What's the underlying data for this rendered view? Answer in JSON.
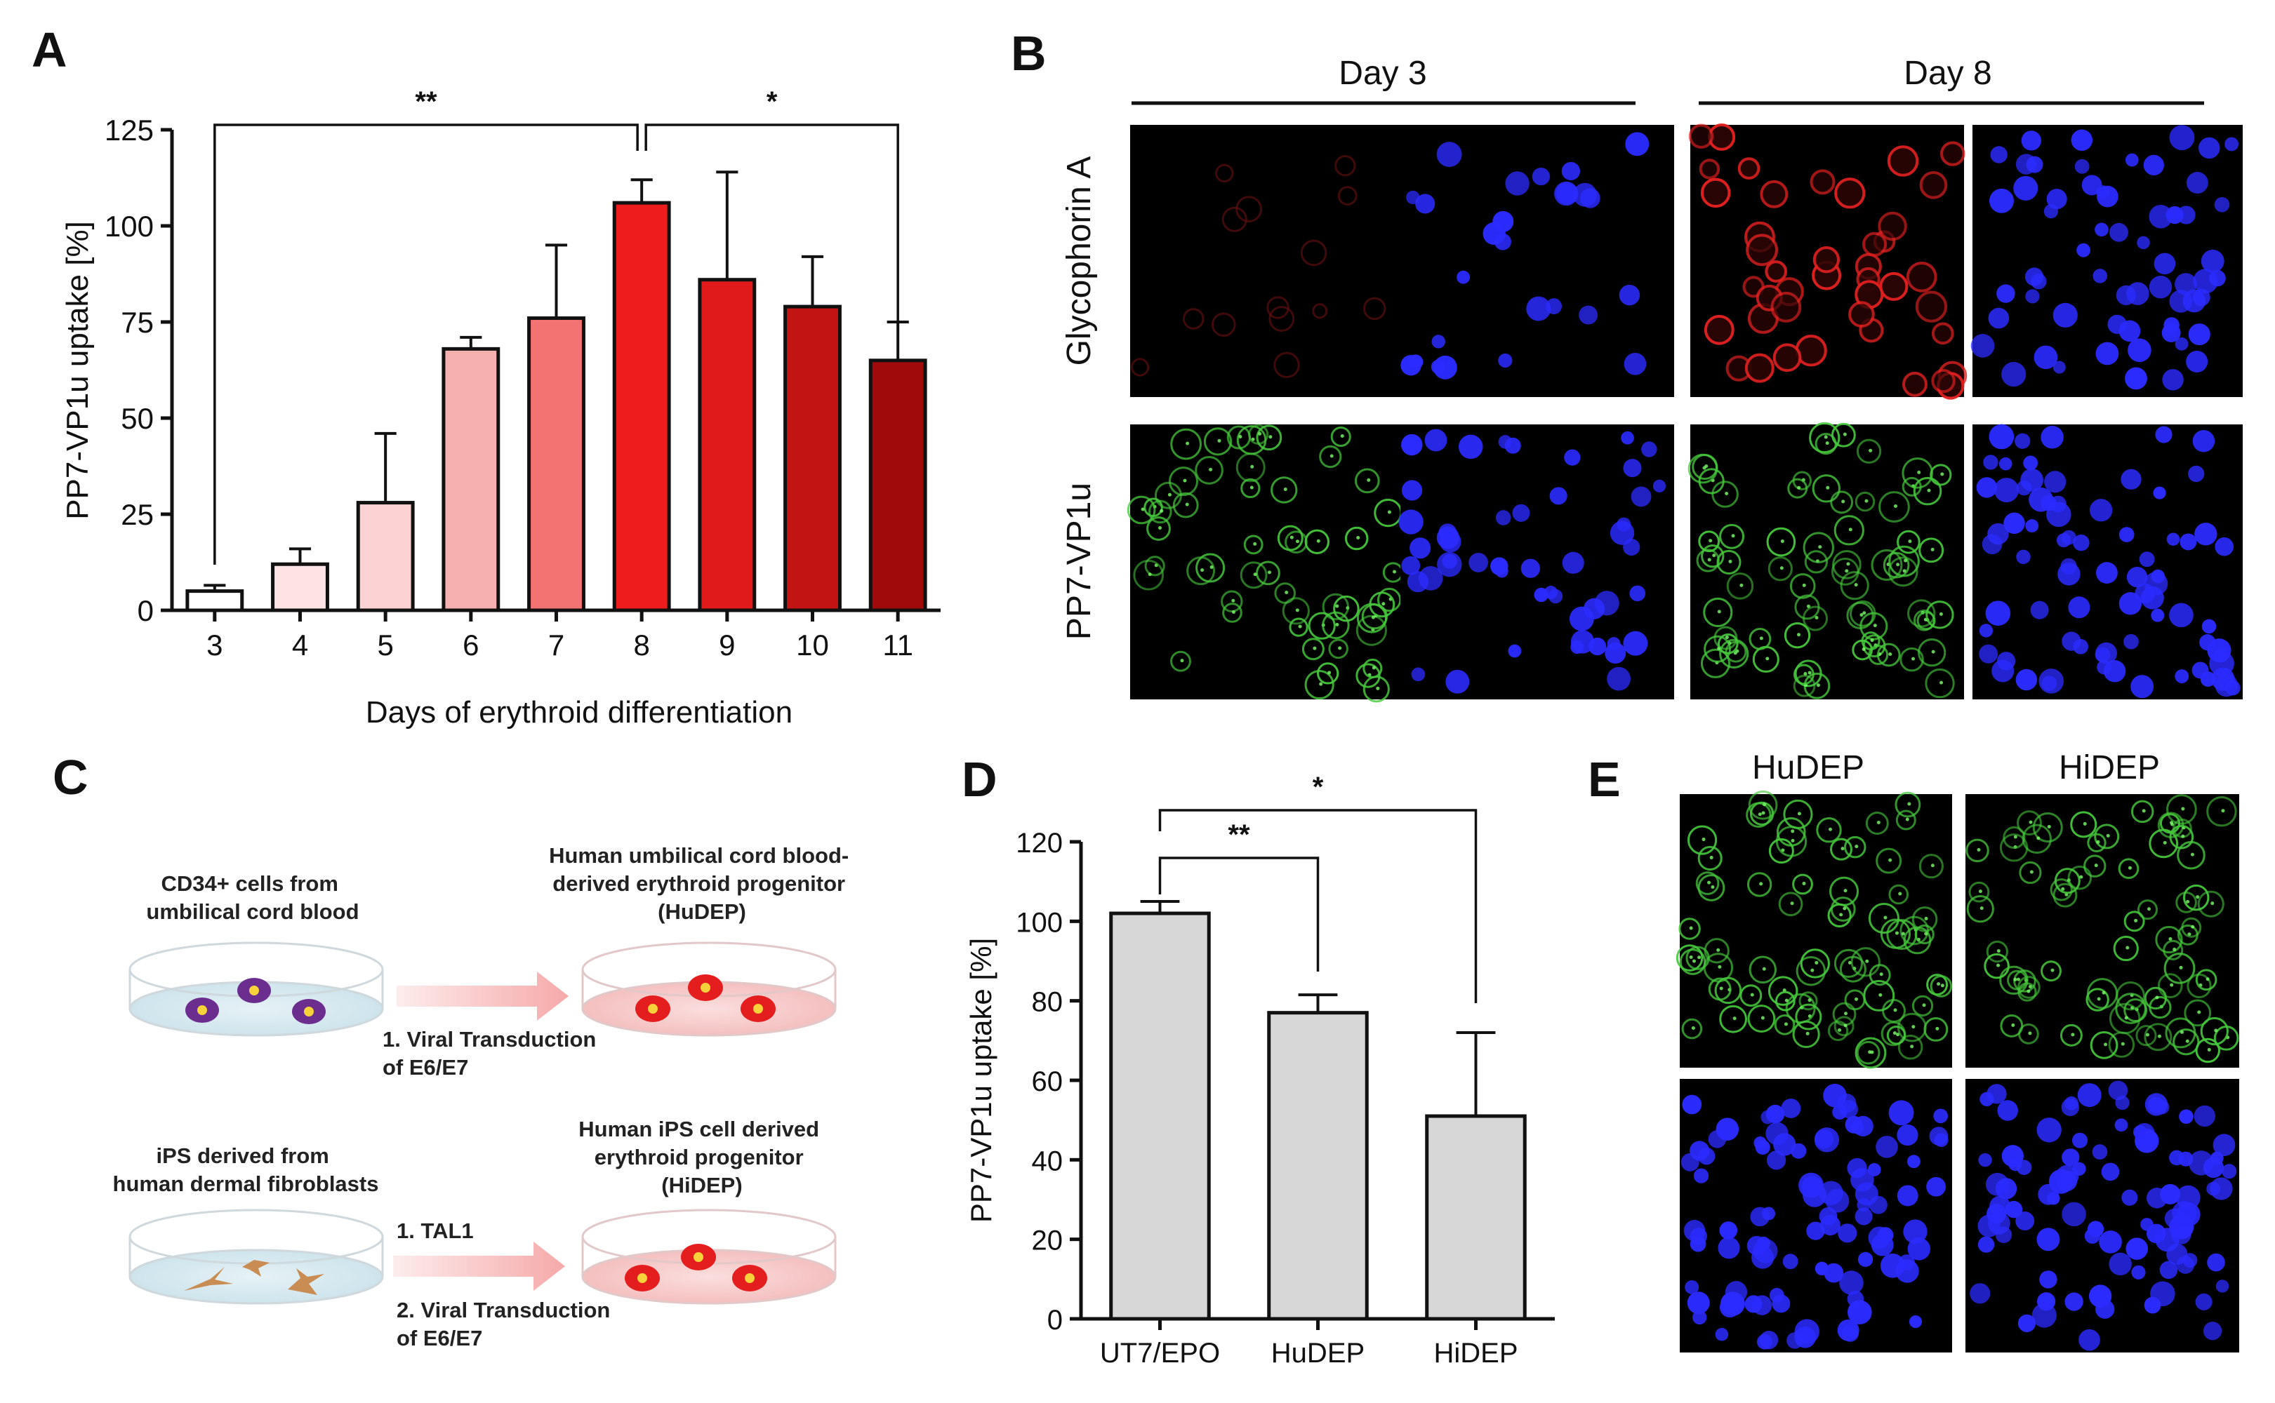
{
  "panel_labels": {
    "a": "A",
    "b": "B",
    "c": "C",
    "d": "D",
    "e": "E"
  },
  "colors": {
    "red_channel": "#d42020",
    "green_channel": "#4cd648",
    "blue_channel": "#2b2bff",
    "gray_bar": "#d7d7d7",
    "dish_blue": "#d7eaf1",
    "dish_red": "#f7cccc",
    "arrow_pink": "#f6b7b7",
    "cell_purple": "#6b2e8f",
    "cell_red": "#e41e1e",
    "nucleus_yellow": "#f7d23a",
    "fibroblast_tan": "#c98c52"
  },
  "chart_data": [
    {
      "id": "A",
      "type": "bar",
      "title": "",
      "xlabel": "Days of erythroid differentiation",
      "ylabel": "PP7-VP1u uptake [%]",
      "categories": [
        "3",
        "4",
        "5",
        "6",
        "7",
        "8",
        "9",
        "10",
        "11"
      ],
      "values": [
        5,
        12,
        28,
        68,
        76,
        106,
        86,
        79,
        65
      ],
      "error_plus": [
        1.5,
        4,
        18,
        3,
        19,
        6,
        28,
        13,
        10
      ],
      "bar_colors": [
        "#ffffff",
        "#fde3e3",
        "#fbd1d1",
        "#f7b0b0",
        "#f37272",
        "#ee1c1c",
        "#e01a1a",
        "#c31414",
        "#a10a0a"
      ],
      "ylim": [
        0,
        125
      ],
      "yticks": [
        0,
        25,
        50,
        75,
        100,
        125
      ],
      "significance": [
        {
          "from": "3",
          "to": "8",
          "label": "**"
        },
        {
          "from": "8",
          "to": "11",
          "label": "*"
        }
      ]
    },
    {
      "id": "D",
      "type": "bar",
      "title": "",
      "xlabel": "",
      "ylabel": "PP7-VP1u uptake [%]",
      "categories": [
        "UT7/EPO",
        "HuDEP",
        "HiDEP"
      ],
      "values": [
        102,
        77,
        51
      ],
      "error_plus": [
        3,
        4.5,
        21
      ],
      "ylim": [
        0,
        120
      ],
      "yticks": [
        0,
        20,
        40,
        60,
        80,
        100,
        120
      ],
      "significance": [
        {
          "from": "UT7/EPO",
          "to": "HuDEP",
          "label": "**"
        },
        {
          "from": "UT7/EPO",
          "to": "HiDEP",
          "label": "*"
        }
      ]
    }
  ],
  "panel_b": {
    "columns": [
      "Day 3",
      "Day 8"
    ],
    "rows": [
      "Glycophorin A",
      "PP7-VP1u"
    ]
  },
  "panel_c": {
    "top": {
      "source_caption": [
        "CD34+ cells from",
        "umbilical cord blood"
      ],
      "target_caption": [
        "Human umbilical cord blood-",
        "derived erythroid progenitor",
        "(HuDEP)"
      ],
      "steps": [
        "1. Viral Transduction",
        "of E6/E7"
      ]
    },
    "bottom": {
      "source_caption": [
        "iPS derived from",
        "human dermal fibroblasts"
      ],
      "target_caption": [
        "Human iPS cell derived",
        "erythroid progenitor",
        "(HiDEP)"
      ],
      "steps_top": [
        "1. TAL1"
      ],
      "steps_bottom": [
        "2. Viral Transduction",
        "of E6/E7"
      ]
    }
  },
  "panel_e": {
    "columns": [
      "HuDEP",
      "HiDEP"
    ]
  }
}
